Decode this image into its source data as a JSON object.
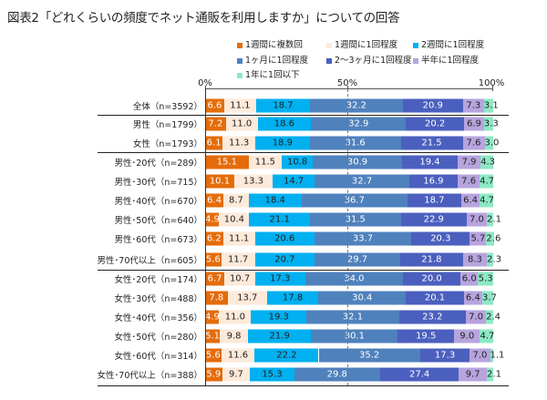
{
  "chart_data": {
    "type": "bar",
    "orientation": "horizontal-stacked-100",
    "title": "図表2「どれくらいの頻度でネット通販を利用しますか」についての回答",
    "xlim": [
      0,
      100
    ],
    "ticks": [
      "0%",
      "50%",
      "100%"
    ],
    "legend_position": "top",
    "categories": [
      "全体（n=3592）",
      "男性（n=1799）",
      "女性（n=1793）",
      "男性･20代（n=289）",
      "男性･30代（n=715）",
      "男性･40代（n=670）",
      "男性･50代（n=640）",
      "男性･60代（n=673）",
      "男性･70代以上（n=605）",
      "女性･20代（n=174）",
      "女性･30代（n=488）",
      "女性･40代（n=356）",
      "女性･50代（n=280）",
      "女性･60代（n=314）",
      "女性･70代以上（n=388）"
    ],
    "series": [
      {
        "name": "1週間に複数回",
        "color": "#E46C0A",
        "text": "#fff",
        "values": [
          6.6,
          7.2,
          6.1,
          15.1,
          10.1,
          6.4,
          4.9,
          6.2,
          5.6,
          6.7,
          7.8,
          4.9,
          5.1,
          5.6,
          5.9
        ]
      },
      {
        "name": "1週間に1回程度",
        "color": "#FDEADA",
        "text": "#222",
        "values": [
          11.1,
          11.0,
          11.3,
          11.5,
          13.3,
          8.7,
          10.4,
          11.1,
          11.7,
          10.7,
          13.7,
          11.0,
          9.8,
          11.6,
          9.7
        ]
      },
      {
        "name": "2週間に1回程度",
        "color": "#00B0F0",
        "text": "#222",
        "values": [
          18.7,
          18.6,
          18.9,
          10.8,
          14.7,
          18.4,
          21.1,
          20.6,
          20.7,
          17.3,
          17.8,
          19.3,
          21.9,
          22.2,
          15.3
        ]
      },
      {
        "name": "1ヶ月に1回程度",
        "color": "#4F81BD",
        "text": "#fff",
        "values": [
          32.2,
          32.9,
          31.6,
          30.9,
          32.7,
          36.7,
          31.5,
          33.7,
          29.7,
          34.0,
          30.4,
          32.1,
          30.1,
          35.2,
          29.8
        ]
      },
      {
        "name": "2～3ヶ月に1回程度",
        "color": "#4B5FBE",
        "text": "#fff",
        "values": [
          20.9,
          20.2,
          21.5,
          19.4,
          16.9,
          18.7,
          22.9,
          20.3,
          21.8,
          20.0,
          20.1,
          23.2,
          19.5,
          17.3,
          27.4
        ]
      },
      {
        "name": "半年に1回程度",
        "color": "#B7A4DE",
        "text": "#222",
        "values": [
          7.3,
          6.9,
          7.6,
          7.9,
          7.6,
          6.4,
          7.0,
          5.7,
          8.3,
          6.0,
          6.4,
          7.0,
          9.0,
          7.0,
          9.7
        ]
      },
      {
        "name": "1年に1回以下",
        "color": "#8EE8C6",
        "text": "#222",
        "values": [
          3.1,
          3.3,
          3.0,
          4.3,
          4.7,
          4.7,
          2.1,
          2.6,
          2.3,
          5.3,
          3.7,
          2.4,
          4.7,
          1.1,
          2.1
        ]
      }
    ]
  }
}
